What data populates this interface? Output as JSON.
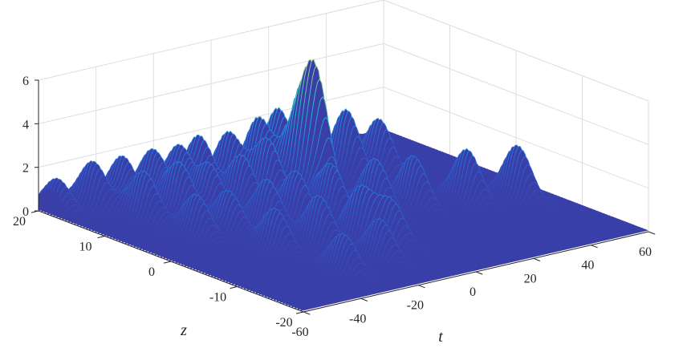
{
  "chart_data": {
    "type": "surface",
    "title": "",
    "xlabel": "t",
    "ylabel": "z",
    "zlabel": "",
    "t_range": [
      -60,
      60
    ],
    "z_range": [
      -20,
      20
    ],
    "zlim": [
      0,
      6
    ],
    "t_ticks": [
      "-60",
      "-40",
      "-20",
      "0",
      "20",
      "40",
      "60"
    ],
    "z_ticks": [
      "-20",
      "-10",
      "0",
      "10",
      "20"
    ],
    "v_ticks": [
      "0",
      "2",
      "4",
      "6"
    ],
    "grid": true,
    "colormap": "parula",
    "colors": {
      "low": "#3b3fb0",
      "mid": "#2f8fe0",
      "high": "#35c7b0",
      "peak": "#7fd8a0",
      "base": "#3a3fa8"
    },
    "peaks": [
      {
        "t": -58,
        "z": 18,
        "height": 1.6
      },
      {
        "t": -48,
        "z": 17,
        "height": 2.2
      },
      {
        "t": -40,
        "z": 16,
        "height": 2.3
      },
      {
        "t": -32,
        "z": 15,
        "height": 2.4
      },
      {
        "t": -25,
        "z": 14,
        "height": 2.5
      },
      {
        "t": -18,
        "z": 14,
        "height": 2.7
      },
      {
        "t": -10,
        "z": 13,
        "height": 2.8
      },
      {
        "t": -2,
        "z": 12,
        "height": 3.2
      },
      {
        "t": 5,
        "z": 12,
        "height": 3.5
      },
      {
        "t": 14,
        "z": 12,
        "height": 4.6
      },
      {
        "t": 24,
        "z": 10,
        "height": 3.2
      },
      {
        "t": 33,
        "z": 9,
        "height": 2.6
      },
      {
        "t": -44,
        "z": 11,
        "height": 2.3
      },
      {
        "t": -34,
        "z": 10,
        "height": 2.4
      },
      {
        "t": -26,
        "z": 9,
        "height": 2.3
      },
      {
        "t": -17,
        "z": 8,
        "height": 2.5
      },
      {
        "t": -8,
        "z": 8,
        "height": 3.0
      },
      {
        "t": 0,
        "z": 7,
        "height": 3.2
      },
      {
        "t": 4,
        "z": 6,
        "height": 5.7
      },
      {
        "t": -42,
        "z": 4,
        "height": 2.0
      },
      {
        "t": -33,
        "z": 3,
        "height": 2.0
      },
      {
        "t": -22,
        "z": 2,
        "height": 2.3
      },
      {
        "t": -12,
        "z": 2,
        "height": 2.4
      },
      {
        "t": -2,
        "z": 1,
        "height": 2.5
      },
      {
        "t": 11,
        "z": 0,
        "height": 2.5
      },
      {
        "t": 22,
        "z": -1,
        "height": 2.4
      },
      {
        "t": 36,
        "z": -3,
        "height": 2.5
      },
      {
        "t": 49,
        "z": -5,
        "height": 2.5
      },
      {
        "t": -33,
        "z": -4,
        "height": 2.0
      },
      {
        "t": -20,
        "z": -5,
        "height": 2.3
      },
      {
        "t": -8,
        "z": -6,
        "height": 2.4
      },
      {
        "t": -30,
        "z": -13,
        "height": 1.8
      },
      {
        "t": -15,
        "z": -12,
        "height": 1.9
      },
      {
        "t": -4,
        "z": -9,
        "height": 2.0
      }
    ]
  }
}
